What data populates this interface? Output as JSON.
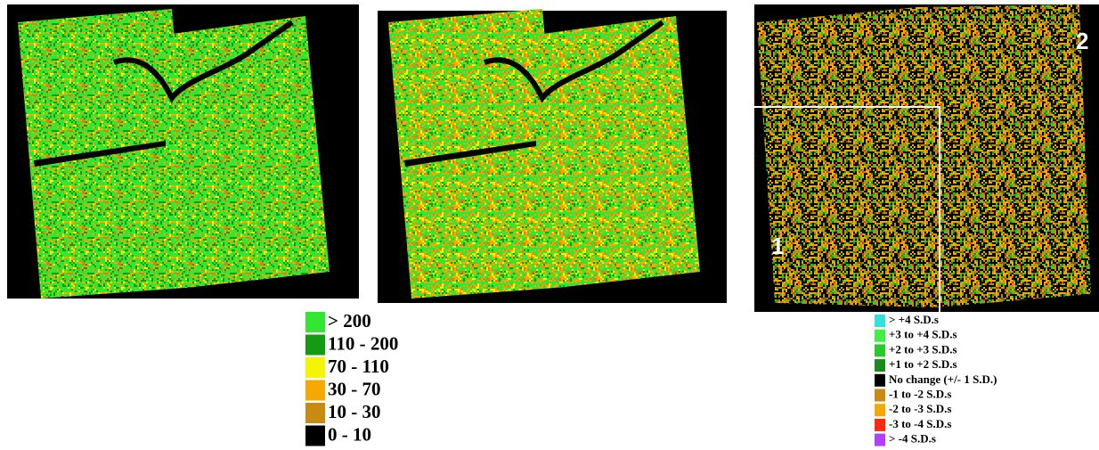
{
  "panels": [
    {
      "label": null
    },
    {
      "label": null
    },
    {
      "label": "1",
      "label2": "2"
    }
  ],
  "legend_left": {
    "items": [
      {
        "label": "> 200",
        "color": "#33e633"
      },
      {
        "label": "110 - 200",
        "color": "#139c13"
      },
      {
        "label": "70 - 110",
        "color": "#f5f500"
      },
      {
        "label": "30 - 70",
        "color": "#f5a800"
      },
      {
        "label": "10 - 30",
        "color": "#c88a10"
      },
      {
        "label": "0 - 10",
        "color": "#000000"
      }
    ]
  },
  "legend_right": {
    "items": [
      {
        "label": "> +4 S.D.s",
        "color": "#33e0e0"
      },
      {
        "label": "+3 to +4 S.D.s",
        "color": "#44ee44"
      },
      {
        "label": "+2 to +3 S.D.s",
        "color": "#2bc82b"
      },
      {
        "label": "+1 to +2 S.D.s",
        "color": "#1a8a1a"
      },
      {
        "label": "No change (+/- 1 S.D.)",
        "color": "#000000"
      },
      {
        "label": "-1 to -2 S.D.s",
        "color": "#c88a10"
      },
      {
        "label": "-2 to -3 S.D.s",
        "color": "#f5a800"
      },
      {
        "label": "-3 to -4 S.D.s",
        "color": "#ff2a10"
      },
      {
        "label": "> -4 S.D.s",
        "color": "#b040ff"
      }
    ]
  }
}
